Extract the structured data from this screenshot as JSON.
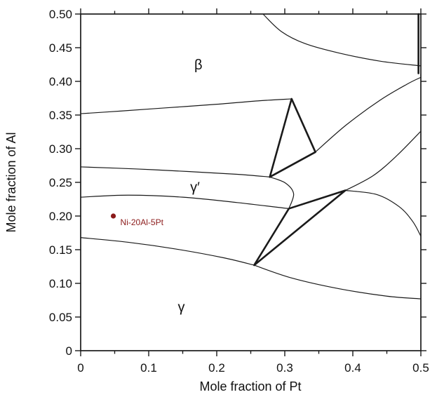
{
  "figure": {
    "background": "#ffffff",
    "frame_color": "#1a1a1a",
    "line_color": "#1a1a1a",
    "annotation_color": "#8b1a1a"
  },
  "chart_data": {
    "type": "line",
    "title": "",
    "xlabel": "Mole fraction of Pt",
    "ylabel": "Mole fraction of Al",
    "xlim": [
      0,
      0.5
    ],
    "ylim": [
      0,
      0.5
    ],
    "grid": false,
    "legend": "none",
    "x_ticks": [
      0,
      0.1,
      0.2,
      0.3,
      0.4,
      0.5
    ],
    "x_tick_labels": [
      "0",
      "0.1",
      "0.2",
      "0.3",
      "0.4",
      "0.5"
    ],
    "x_minor_ticks": [
      0.05,
      0.15,
      0.25,
      0.35,
      0.45
    ],
    "y_ticks": [
      0,
      0.05,
      0.1,
      0.15,
      0.2,
      0.25,
      0.3,
      0.35,
      0.4,
      0.45,
      0.5
    ],
    "y_tick_labels": [
      "0",
      "0.05",
      "0.10",
      "0.15",
      "0.20",
      "0.25",
      "0.30",
      "0.35",
      "0.40",
      "0.45",
      "0.50"
    ],
    "curves": [
      {
        "name": "beta-upper-right-boundary",
        "width": 1.2,
        "points": [
          [
            0.268,
            0.5
          ],
          [
            0.295,
            0.474
          ],
          [
            0.33,
            0.456
          ],
          [
            0.38,
            0.442
          ],
          [
            0.44,
            0.43
          ],
          [
            0.5,
            0.423
          ]
        ]
      },
      {
        "name": "right-edge-phase-boundary",
        "width": 2.6,
        "points": [
          [
            0.4965,
            0.5
          ],
          [
            0.4965,
            0.412
          ]
        ]
      },
      {
        "name": "beta-lower-boundary",
        "width": 1.2,
        "points": [
          [
            0.0,
            0.352
          ],
          [
            0.06,
            0.356
          ],
          [
            0.13,
            0.361
          ],
          [
            0.2,
            0.366
          ],
          [
            0.26,
            0.371
          ],
          [
            0.31,
            0.374
          ]
        ]
      },
      {
        "name": "beta-gamma-prime-right-boundary",
        "width": 1.2,
        "points": [
          [
            0.345,
            0.295
          ],
          [
            0.39,
            0.335
          ],
          [
            0.44,
            0.372
          ],
          [
            0.48,
            0.396
          ],
          [
            0.5,
            0.406
          ]
        ]
      },
      {
        "name": "mid-right-boundary",
        "width": 1.2,
        "points": [
          [
            0.389,
            0.238
          ],
          [
            0.43,
            0.26
          ],
          [
            0.465,
            0.29
          ],
          [
            0.5,
            0.326
          ]
        ]
      },
      {
        "name": "gamma-prime-upper-boundary",
        "width": 1.2,
        "points": [
          [
            0.0,
            0.273
          ],
          [
            0.08,
            0.27
          ],
          [
            0.16,
            0.266
          ],
          [
            0.23,
            0.262
          ],
          [
            0.278,
            0.258
          ]
        ]
      },
      {
        "name": "gamma-prime-nose-boundary",
        "width": 1.2,
        "points": [
          [
            0.278,
            0.258
          ],
          [
            0.301,
            0.249
          ],
          [
            0.313,
            0.233
          ],
          [
            0.306,
            0.211
          ]
        ]
      },
      {
        "name": "gamma-prime-lower-boundary",
        "width": 1.2,
        "points": [
          [
            0.0,
            0.228
          ],
          [
            0.07,
            0.231
          ],
          [
            0.15,
            0.228
          ],
          [
            0.23,
            0.22
          ],
          [
            0.306,
            0.211
          ]
        ]
      },
      {
        "name": "gamma-upper-boundary-left",
        "width": 1.2,
        "points": [
          [
            0.0,
            0.168
          ],
          [
            0.07,
            0.161
          ],
          [
            0.14,
            0.151
          ],
          [
            0.21,
            0.138
          ],
          [
            0.255,
            0.127
          ]
        ]
      },
      {
        "name": "gamma-upper-boundary-right",
        "width": 1.2,
        "points": [
          [
            0.255,
            0.127
          ],
          [
            0.31,
            0.108
          ],
          [
            0.38,
            0.092
          ],
          [
            0.45,
            0.081
          ],
          [
            0.5,
            0.077
          ]
        ]
      },
      {
        "name": "lower-right-boundary",
        "width": 1.2,
        "points": [
          [
            0.389,
            0.238
          ],
          [
            0.435,
            0.232
          ],
          [
            0.468,
            0.214
          ],
          [
            0.488,
            0.192
          ],
          [
            0.5,
            0.17
          ]
        ]
      }
    ],
    "triangles": [
      {
        "name": "three-phase-triangle-upper",
        "width": 2.6,
        "points": [
          [
            0.31,
            0.374
          ],
          [
            0.278,
            0.258
          ],
          [
            0.345,
            0.295
          ]
        ]
      },
      {
        "name": "three-phase-triangle-lower",
        "width": 2.6,
        "points": [
          [
            0.306,
            0.211
          ],
          [
            0.389,
            0.238
          ],
          [
            0.255,
            0.127
          ]
        ]
      }
    ],
    "phase_labels": [
      {
        "label": "β",
        "x": 0.173,
        "y": 0.425
      },
      {
        "label": "γ′",
        "x": 0.168,
        "y": 0.243
      },
      {
        "label": "γ",
        "x": 0.148,
        "y": 0.065
      }
    ],
    "annotation": {
      "label": "Ni-20Al-5Pt",
      "x": 0.048,
      "y": 0.2,
      "color": "#8b1a1a"
    }
  }
}
